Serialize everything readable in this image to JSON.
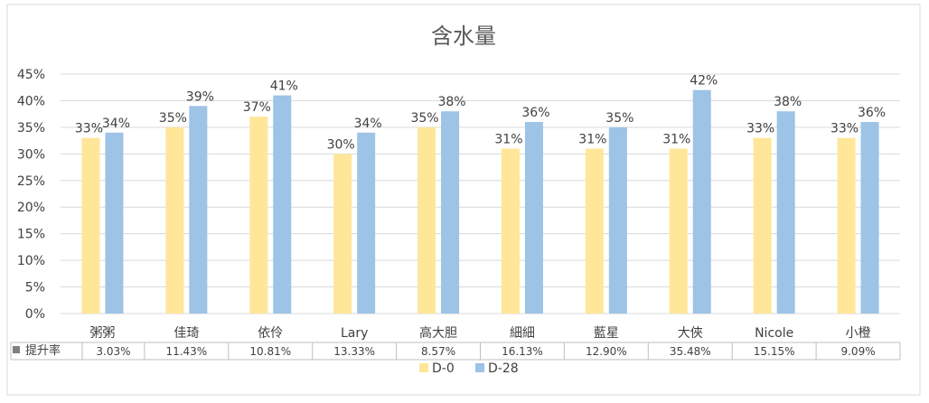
{
  "chart_data": {
    "type": "bar",
    "title": "含水量",
    "categories": [
      "粥粥",
      "佳琦",
      "依伶",
      "Lary",
      "高大胆",
      "細細",
      "藍星",
      "大俠",
      "Nicole",
      "小橙"
    ],
    "series": [
      {
        "name": "D-0",
        "color": "#FFE699",
        "values": [
          33,
          35,
          37,
          30,
          35,
          31,
          31,
          31,
          33,
          33
        ],
        "labels": [
          "33%",
          "35%",
          "37%",
          "30%",
          "35%",
          "31%",
          "31%",
          "31%",
          "33%",
          "33%"
        ]
      },
      {
        "name": "D-28",
        "color": "#9DC3E6",
        "values": [
          34,
          39,
          41,
          34,
          38,
          36,
          35,
          42,
          38,
          36
        ],
        "labels": [
          "34%",
          "39%",
          "41%",
          "34%",
          "38%",
          "36%",
          "35%",
          "42%",
          "38%",
          "36%"
        ]
      }
    ],
    "yticks": [
      "0%",
      "5%",
      "10%",
      "15%",
      "20%",
      "25%",
      "30%",
      "35%",
      "40%",
      "45%"
    ],
    "ylim": [
      0,
      45
    ],
    "grid": true,
    "legend_position": "bottom",
    "table": {
      "row_label": "提升率",
      "row_color": "#808080",
      "values": [
        "3.03%",
        "11.43%",
        "10.81%",
        "13.33%",
        "8.57%",
        "16.13%",
        "12.90%",
        "35.48%",
        "15.15%",
        "9.09%"
      ]
    }
  }
}
